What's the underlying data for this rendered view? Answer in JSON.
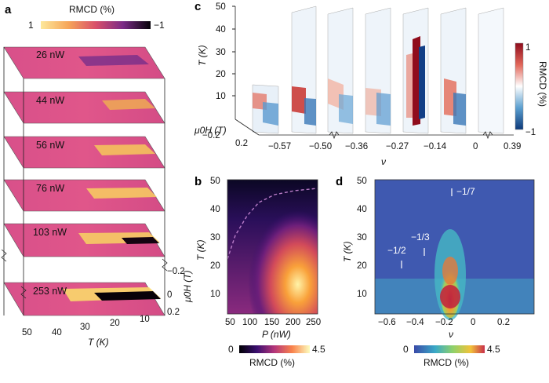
{
  "panels": {
    "a": {
      "letter": "a",
      "colorbar": {
        "title": "RMCD (%)",
        "min_label": "1",
        "max_label": "−1"
      },
      "layers": [
        "26 nW",
        "44 nW",
        "56 nW",
        "76 nW",
        "103 nW",
        "253 nW"
      ],
      "x_axis": {
        "label": "T (K)",
        "ticks": [
          "50",
          "40",
          "30",
          "20",
          "10"
        ]
      },
      "y_axis": {
        "label": "μ0H (T)",
        "ticks": [
          "−0.2",
          "0",
          "0.2"
        ]
      }
    },
    "b": {
      "letter": "b",
      "x_axis": {
        "label": "P (nW)",
        "ticks": [
          "50",
          "100",
          "150",
          "200",
          "250"
        ]
      },
      "y_axis": {
        "label": "T (K)",
        "ticks": [
          "50",
          "40",
          "30",
          "20",
          "10"
        ]
      },
      "colorbar": {
        "title": "RMCD (%)",
        "min_label": "0",
        "max_label": "4.5"
      }
    },
    "c": {
      "letter": "c",
      "y_axis": {
        "label": "T (K)",
        "ticks": [
          "50",
          "40",
          "30",
          "20",
          "10"
        ]
      },
      "depth_axis": {
        "label": "μ0H (T)",
        "ticks": [
          "−0.2",
          "0.2"
        ]
      },
      "x_axis": {
        "label": "ν",
        "ticks": [
          "−0.57",
          "−0.50",
          "−0.36",
          "−0.27",
          "−0.14",
          "0",
          "0.39"
        ]
      },
      "colorbar": {
        "title": "RMCD (%)",
        "max_label": "1",
        "min_label": "−1"
      }
    },
    "d": {
      "letter": "d",
      "x_axis": {
        "label": "ν",
        "ticks": [
          "−0.6",
          "−0.4",
          "−0.2",
          "0",
          "0.2"
        ]
      },
      "y_axis": {
        "label": "T (K)",
        "ticks": [
          "50",
          "40",
          "30",
          "20",
          "10"
        ]
      },
      "annotations": [
        "−1/7",
        "−1/3",
        "−1/2"
      ],
      "colorbar": {
        "title": "RMCD (%)",
        "min_label": "0",
        "max_label": "4.5"
      }
    }
  }
}
